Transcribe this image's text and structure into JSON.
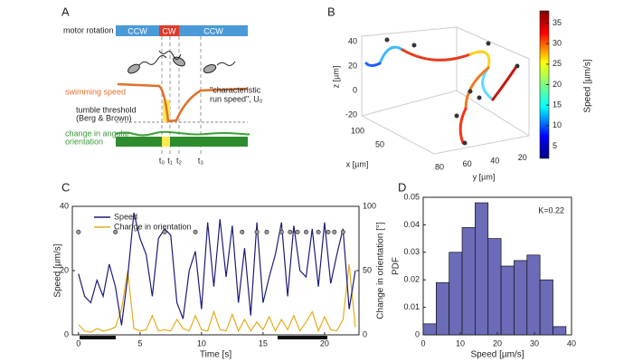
{
  "panel_labels": [
    "A",
    "B",
    "C",
    "D"
  ],
  "diagram": {
    "motor_label": "motor rotation",
    "rotation": [
      "CCW",
      "CW",
      "CCW"
    ],
    "speed_label": "swimming speed",
    "threshold_label": [
      "tumble threshold",
      "(Berg & Brown)"
    ],
    "orientation_label": [
      "change in angular",
      "orientation"
    ],
    "run_speed_label": [
      "\"characteristic",
      "run speed\", U₀"
    ],
    "times": [
      "t₀",
      "t₁",
      "t₂",
      "t₃"
    ]
  },
  "chart_data": [
    {
      "type": "trajectory3d",
      "xlabel": "x [µm]",
      "ylabel": "y [µm]",
      "zlabel": "z [µm]",
      "xticks": [
        50,
        100
      ],
      "yticks": [
        20,
        40,
        60,
        80
      ],
      "zticks": [
        -20,
        0,
        20,
        40
      ],
      "colorbar_label": "Speed [µm/s]",
      "clim": [
        2,
        38
      ],
      "cticks": [
        5,
        10,
        15,
        20,
        25,
        30,
        35
      ]
    },
    {
      "type": "line",
      "xlabel": "Time [s]",
      "ylabel": "Speed [µm/s]",
      "y2label": "Change in orientation [°]",
      "x": [
        0,
        0.5,
        1,
        1.5,
        2,
        2.5,
        3,
        3.5,
        4,
        4.5,
        5,
        5.5,
        6,
        6.5,
        7,
        7.5,
        8,
        8.5,
        9,
        9.5,
        10,
        10.5,
        11,
        11.5,
        12,
        12.5,
        13,
        13.5,
        14,
        14.5,
        15,
        15.5,
        16,
        16.5,
        17,
        17.5,
        18,
        18.5,
        19,
        19.5,
        20,
        20.5,
        21,
        21.5,
        22,
        22.5
      ],
      "series": [
        {
          "name": "Speed",
          "color": "#1c1c78",
          "values": [
            19,
            12,
            10,
            17,
            12,
            22,
            15,
            3,
            18,
            38,
            30,
            25,
            12,
            30,
            33,
            31,
            10,
            5,
            20,
            26,
            8,
            35,
            15,
            36,
            18,
            34,
            10,
            27,
            6,
            35,
            10,
            18,
            25,
            35,
            12,
            34,
            20,
            18,
            33,
            15,
            35,
            16,
            25,
            33,
            8,
            20
          ]
        },
        {
          "name": "Change in orientation",
          "color": "#e3ad1e",
          "axis": "y2",
          "values": [
            8,
            3,
            2,
            5,
            3,
            4,
            6,
            20,
            50,
            5,
            3,
            4,
            15,
            3,
            4,
            3,
            12,
            5,
            3,
            15,
            4,
            3,
            18,
            4,
            3,
            16,
            3,
            12,
            3,
            10,
            4,
            14,
            3,
            12,
            4,
            15,
            3,
            10,
            18,
            3,
            14,
            4,
            3,
            12,
            55,
            6
          ]
        }
      ],
      "tumbles": {
        "x": [
          0,
          3,
          7,
          9.5,
          13.3,
          14.5,
          15.3,
          16.5,
          17.2,
          17.8,
          18.5,
          19.5,
          20.3,
          20.8,
          21.5
        ],
        "y": [
          32,
          32,
          32,
          32,
          32,
          32,
          32,
          32,
          32,
          32,
          32,
          32,
          32,
          32,
          32
        ]
      },
      "xlim": [
        -0.5,
        22.8
      ],
      "xticks": [
        0,
        5,
        10,
        15,
        20
      ],
      "ylim": [
        0,
        40
      ],
      "yticks": [
        0,
        20,
        40
      ],
      "y2lim": [
        0,
        100
      ],
      "y2ticks": [
        0,
        50,
        100
      ]
    },
    {
      "type": "histogram",
      "xlabel": "Speed [µm/s]",
      "ylabel": "PDF",
      "annotation": "K=0.22",
      "color": "#6b6bb8",
      "bins": [
        0,
        3.5,
        7,
        10.5,
        14,
        17.5,
        21,
        24.5,
        28,
        31.5,
        35,
        38.5
      ],
      "values": [
        0.004,
        0.019,
        0.03,
        0.039,
        0.048,
        0.035,
        0.025,
        0.027,
        0.029,
        0.02,
        0.003
      ],
      "xlim": [
        0,
        40
      ],
      "xticks": [
        0,
        10,
        20,
        30,
        40
      ],
      "ylim": [
        0,
        0.05
      ],
      "yticks": [
        0,
        0.01,
        0.02,
        0.03,
        0.04,
        0.05
      ]
    }
  ]
}
